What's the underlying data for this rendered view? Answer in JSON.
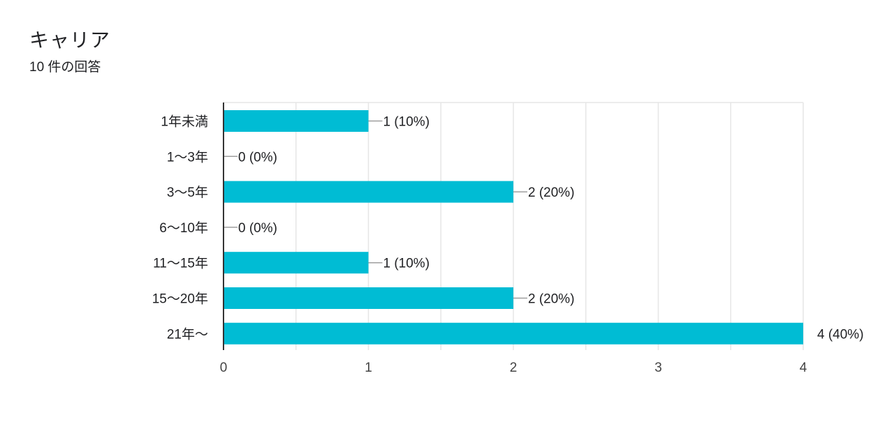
{
  "header": {
    "title": "キャリア",
    "subtitle": "10 件の回答"
  },
  "colors": {
    "bar": "#00BCD4",
    "grid": "#E6E6E6",
    "axis": "#333333",
    "leader": "#9E9E9E"
  },
  "chart_data": {
    "type": "bar",
    "orientation": "horizontal",
    "categories": [
      "1年未満",
      "1〜3年",
      "3〜5年",
      "6〜10年",
      "11〜15年",
      "15〜20年",
      "21年〜"
    ],
    "values": [
      1,
      0,
      2,
      0,
      1,
      2,
      4
    ],
    "data_labels": [
      "1 (10%)",
      "0 (0%)",
      "2 (20%)",
      "0 (0%)",
      "1 (10%)",
      "2 (20%)",
      "4 (40%)"
    ],
    "xlim": [
      0,
      4
    ],
    "xticks": [
      "0",
      "1",
      "2",
      "3",
      "4"
    ],
    "grid": true,
    "xlabel": "",
    "ylabel": ""
  }
}
